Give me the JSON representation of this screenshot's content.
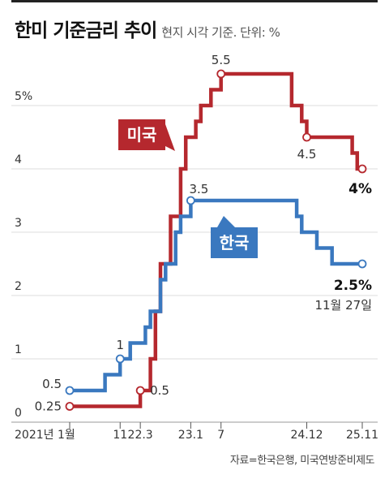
{
  "title": "한미 기준금리 추이",
  "subtitle": "현지 시각 기준. 단위: %",
  "source": "자료=한국은행, 미국연방준비제도",
  "date_note": "11월 27일",
  "colors": {
    "us": "#b5282e",
    "kr": "#3a78bf",
    "grid": "#dddddd",
    "axis": "#999999"
  },
  "chart_data": {
    "type": "line",
    "step": true,
    "ylabel": "%",
    "ylim": [
      0,
      6
    ],
    "y_ticks": [
      {
        "value": 0,
        "label": "0"
      },
      {
        "value": 1,
        "label": "1"
      },
      {
        "value": 2,
        "label": "2"
      },
      {
        "value": 3,
        "label": "3"
      },
      {
        "value": 4,
        "label": "4"
      },
      {
        "value": 5,
        "label": "5%"
      }
    ],
    "x_range": [
      "2021-01",
      "2025-11"
    ],
    "x_ticks": [
      {
        "date": "2021-01",
        "label": "2021년 1월"
      },
      {
        "date": "2021-11",
        "label": "11"
      },
      {
        "date": "2022-03",
        "label": "22.3"
      },
      {
        "date": "2023-01",
        "label": "23.1"
      },
      {
        "date": "2023-07",
        "label": "7"
      },
      {
        "date": "2024-12",
        "label": "24.12"
      },
      {
        "date": "2025-11",
        "label": "25.11"
      }
    ],
    "series": [
      {
        "name": "미국",
        "color": "#b5282e",
        "points": [
          [
            "2021-01",
            0.25
          ],
          [
            "2022-03",
            0.5
          ],
          [
            "2022-05",
            1.0
          ],
          [
            "2022-06",
            1.75
          ],
          [
            "2022-07",
            2.5
          ],
          [
            "2022-09",
            3.25
          ],
          [
            "2022-11",
            4.0
          ],
          [
            "2022-12",
            4.5
          ],
          [
            "2023-02",
            4.75
          ],
          [
            "2023-03",
            5.0
          ],
          [
            "2023-05",
            5.25
          ],
          [
            "2023-07",
            5.5
          ],
          [
            "2024-09",
            5.0
          ],
          [
            "2024-11",
            4.75
          ],
          [
            "2024-12",
            4.5
          ],
          [
            "2025-09",
            4.25
          ],
          [
            "2025-10",
            4.0
          ],
          [
            "2025-11",
            4.0
          ]
        ],
        "labels": [
          {
            "date": "2021-01",
            "value": 0.25,
            "text": "0.25"
          },
          {
            "date": "2022-03",
            "value": 0.5,
            "text": "0.5"
          },
          {
            "date": "2023-07",
            "value": 5.5,
            "text": "5.5"
          },
          {
            "date": "2024-12",
            "value": 4.5,
            "text": "4.5"
          },
          {
            "date": "2025-11",
            "value": 4.0,
            "text": "4%"
          }
        ]
      },
      {
        "name": "한국",
        "color": "#3a78bf",
        "points": [
          [
            "2021-01",
            0.5
          ],
          [
            "2021-08",
            0.75
          ],
          [
            "2021-11",
            1.0
          ],
          [
            "2022-01",
            1.25
          ],
          [
            "2022-04",
            1.5
          ],
          [
            "2022-05",
            1.75
          ],
          [
            "2022-07",
            2.25
          ],
          [
            "2022-08",
            2.5
          ],
          [
            "2022-10",
            3.0
          ],
          [
            "2022-11",
            3.25
          ],
          [
            "2023-01",
            3.5
          ],
          [
            "2024-10",
            3.25
          ],
          [
            "2024-11",
            3.0
          ],
          [
            "2025-02",
            2.75
          ],
          [
            "2025-05",
            2.5
          ],
          [
            "2025-11",
            2.5
          ]
        ],
        "labels": [
          {
            "date": "2021-01",
            "value": 0.5,
            "text": "0.5"
          },
          {
            "date": "2021-11",
            "value": 1.0,
            "text": "1"
          },
          {
            "date": "2023-01",
            "value": 3.5,
            "text": "3.5"
          },
          {
            "date": "2025-11",
            "value": 2.5,
            "text": "2.5%"
          }
        ]
      }
    ]
  }
}
